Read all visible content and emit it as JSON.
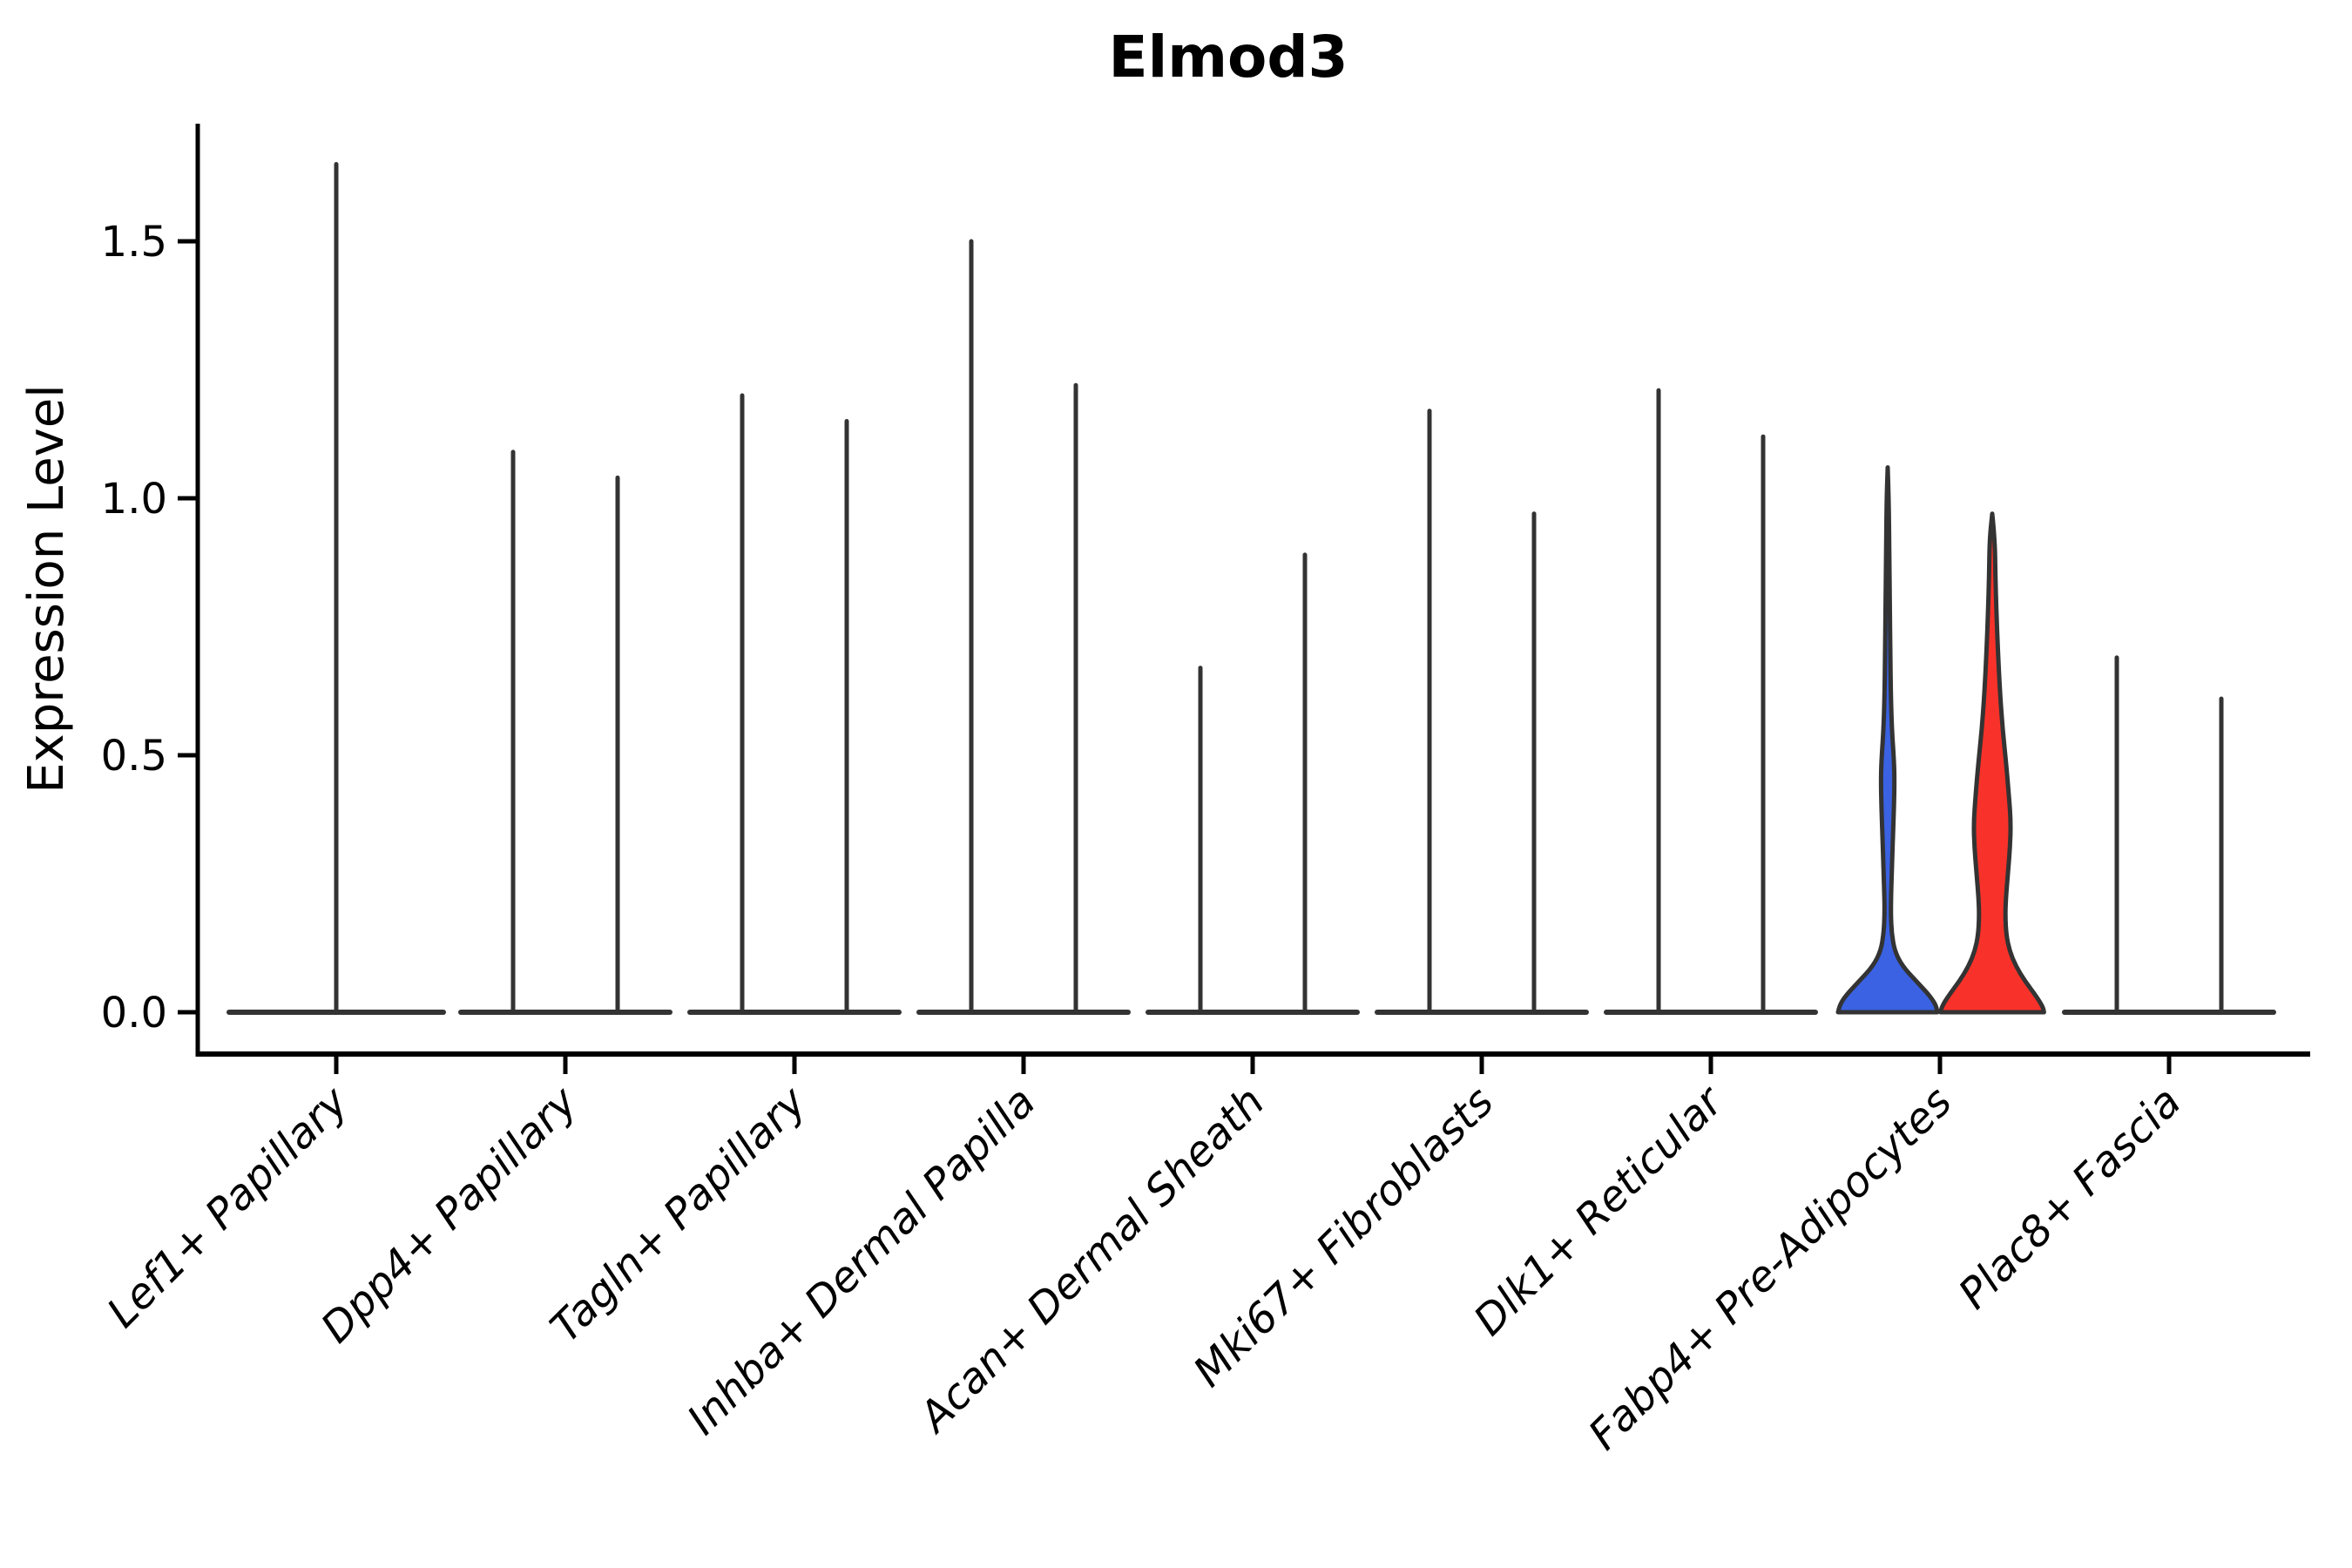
{
  "chart_data": {
    "type": "violin",
    "title": "Elmod3",
    "xlabel": "",
    "ylabel": "Expression Level",
    "yticks": [
      0.0,
      0.5,
      1.0,
      1.5
    ],
    "ytick_labels": [
      "0.0",
      "0.5",
      "1.0",
      "1.5"
    ],
    "ylim": [
      -0.08,
      1.73
    ],
    "grid": false,
    "legend": "none",
    "colors": {
      "violin_outline": "#333333",
      "axis_spine": "#000000",
      "split_blue_fill": "#3A62E2",
      "split_red_fill": "#F8322A"
    },
    "categories": [
      {
        "label": "Lef1+ Papillary",
        "violins": [
          {
            "kind": "spike",
            "group": "single",
            "max_expression": 1.65,
            "width": "full"
          }
        ]
      },
      {
        "label": "Dpp4+ Papillary",
        "violins": [
          {
            "kind": "spike",
            "group": "left",
            "max_expression": 1.09
          },
          {
            "kind": "spike",
            "group": "right",
            "max_expression": 1.04
          }
        ]
      },
      {
        "label": "Tagln+ Papillary",
        "violins": [
          {
            "kind": "spike",
            "group": "left",
            "max_expression": 1.2
          },
          {
            "kind": "spike",
            "group": "right",
            "max_expression": 1.15
          }
        ]
      },
      {
        "label": "Inhba+ Dermal Papilla",
        "violins": [
          {
            "kind": "spike",
            "group": "left",
            "max_expression": 1.5
          },
          {
            "kind": "spike",
            "group": "right",
            "max_expression": 1.22
          }
        ]
      },
      {
        "label": "Acan+ Dermal Sheath",
        "violins": [
          {
            "kind": "spike",
            "group": "left",
            "max_expression": 0.67
          },
          {
            "kind": "spike",
            "group": "right",
            "max_expression": 0.89
          }
        ]
      },
      {
        "label": "Mki67+ Fibroblasts",
        "violins": [
          {
            "kind": "spike",
            "group": "left",
            "max_expression": 1.17
          },
          {
            "kind": "spike",
            "group": "right",
            "max_expression": 0.97
          }
        ]
      },
      {
        "label": "Dlk1+ Reticular",
        "violins": [
          {
            "kind": "spike",
            "group": "left",
            "max_expression": 1.21
          },
          {
            "kind": "spike",
            "group": "right",
            "max_expression": 1.12
          }
        ]
      },
      {
        "label": "Fabp4+ Pre-Adipocytes",
        "violins": [
          {
            "kind": "filled",
            "group": "left",
            "max_expression": 1.06,
            "fill": "#3A62E2",
            "profile": [
              [
                1.06,
                0.0
              ],
              [
                1.0,
                0.02
              ],
              [
                0.9,
                0.03
              ],
              [
                0.8,
                0.04
              ],
              [
                0.7,
                0.05
              ],
              [
                0.62,
                0.06
              ],
              [
                0.55,
                0.08
              ],
              [
                0.49,
                0.12
              ],
              [
                0.45,
                0.13
              ],
              [
                0.4,
                0.12
              ],
              [
                0.34,
                0.1
              ],
              [
                0.28,
                0.08
              ],
              [
                0.23,
                0.065
              ],
              [
                0.19,
                0.06
              ],
              [
                0.155,
                0.075
              ],
              [
                0.12,
                0.13
              ],
              [
                0.09,
                0.28
              ],
              [
                0.06,
                0.55
              ],
              [
                0.035,
                0.78
              ],
              [
                0.015,
                0.92
              ],
              [
                0.0,
                0.95
              ]
            ]
          },
          {
            "kind": "filled",
            "group": "right",
            "max_expression": 0.97,
            "fill": "#F8322A",
            "profile": [
              [
                0.97,
                0.0
              ],
              [
                0.92,
                0.05
              ],
              [
                0.85,
                0.06
              ],
              [
                0.78,
                0.08
              ],
              [
                0.7,
                0.11
              ],
              [
                0.62,
                0.15
              ],
              [
                0.55,
                0.2
              ],
              [
                0.48,
                0.27
              ],
              [
                0.42,
                0.32
              ],
              [
                0.37,
                0.355
              ],
              [
                0.32,
                0.34
              ],
              [
                0.27,
                0.3
              ],
              [
                0.22,
                0.26
              ],
              [
                0.185,
                0.25
              ],
              [
                0.15,
                0.27
              ],
              [
                0.12,
                0.33
              ],
              [
                0.09,
                0.45
              ],
              [
                0.06,
                0.63
              ],
              [
                0.03,
                0.85
              ],
              [
                0.01,
                0.97
              ],
              [
                0.0,
                0.99
              ]
            ]
          }
        ]
      },
      {
        "label": "Plac8+ Fascia",
        "violins": [
          {
            "kind": "spike",
            "group": "left",
            "max_expression": 0.69
          },
          {
            "kind": "spike",
            "group": "right",
            "max_expression": 0.61
          }
        ]
      }
    ]
  }
}
